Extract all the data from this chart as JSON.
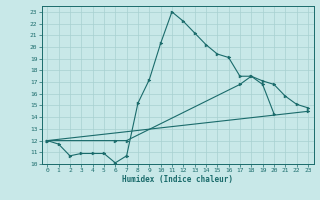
{
  "xlabel": "Humidex (Indice chaleur)",
  "bg_color": "#c8e8e8",
  "line_color": "#1a6b6b",
  "grid_color": "#a8d0d0",
  "xlim": [
    -0.5,
    23.5
  ],
  "ylim": [
    10,
    23.5
  ],
  "xticks": [
    0,
    1,
    2,
    3,
    4,
    5,
    6,
    7,
    8,
    9,
    10,
    11,
    12,
    13,
    14,
    15,
    16,
    17,
    18,
    19,
    20,
    21,
    22,
    23
  ],
  "yticks": [
    10,
    11,
    12,
    13,
    14,
    15,
    16,
    17,
    18,
    19,
    20,
    21,
    22,
    23
  ],
  "series1_x": [
    0,
    1,
    2,
    3,
    4,
    5,
    6,
    7,
    8,
    9,
    10,
    11,
    12,
    13,
    14,
    15,
    16,
    17,
    18,
    19,
    20
  ],
  "series1_y": [
    12.0,
    11.7,
    10.7,
    10.9,
    10.9,
    10.9,
    10.1,
    10.7,
    15.2,
    17.2,
    20.3,
    23.0,
    22.2,
    21.2,
    20.2,
    19.4,
    19.1,
    17.5,
    17.5,
    16.8,
    14.3
  ],
  "series2_x": [
    0,
    6,
    7,
    17,
    18,
    19,
    20,
    21,
    22,
    23
  ],
  "series2_y": [
    12.0,
    12.0,
    12.0,
    16.8,
    17.5,
    17.1,
    16.8,
    15.8,
    15.1,
    14.8
  ],
  "series3_x": [
    0,
    23
  ],
  "series3_y": [
    12.0,
    14.5
  ]
}
